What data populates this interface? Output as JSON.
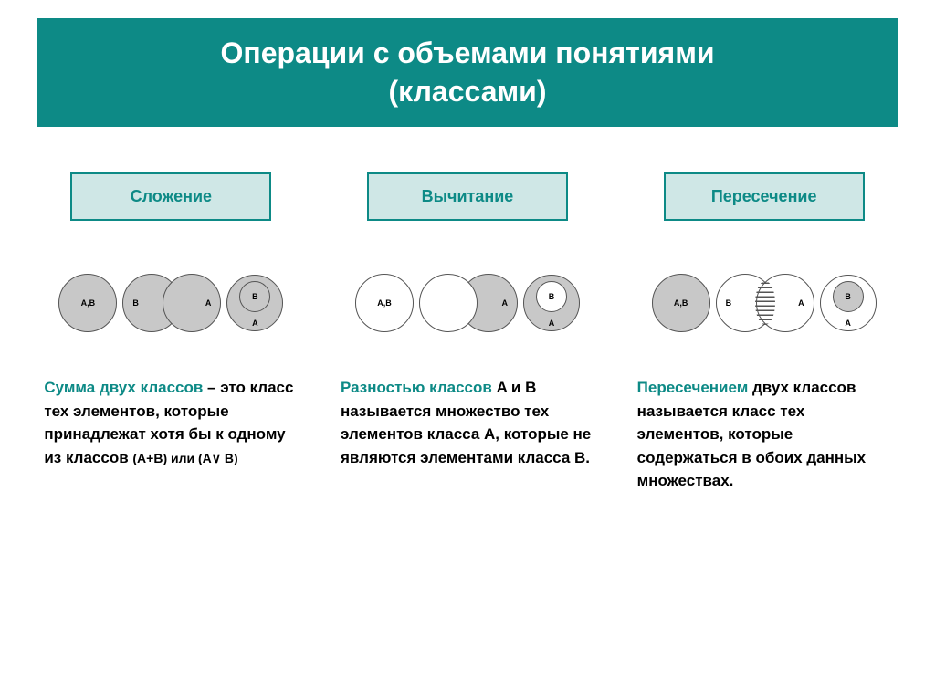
{
  "colors": {
    "teal": "#0d8a86",
    "lightTeal": "#cfe7e6",
    "gray": "#c8c8c8",
    "border": "#555555",
    "white": "#ffffff",
    "black": "#000000"
  },
  "title": {
    "line1": "Операции с объемами понятиями",
    "line2": "(классами)"
  },
  "operations": [
    {
      "name": "Сложение",
      "diagrams": {
        "d1_label": "A,B",
        "d2_left": "B",
        "d2_right": "A",
        "d3_inner": "B",
        "d3_outer": "A"
      },
      "desc": {
        "highlight": "Сумма двух классов",
        "body": " – это класс тех элементов, которые принадлежат хотя бы к одному из классов ",
        "formula": "(A+B) или (A∨ B)"
      }
    },
    {
      "name": "Вычитание",
      "diagrams": {
        "d1_label": "A,B",
        "d2_right": "A",
        "d3_inner": "B",
        "d3_outer": "A"
      },
      "desc": {
        "highlight": "Разностью классов",
        "body_start": " A и B называется множество тех элементов класса A, которые не являются элементами класса B."
      }
    },
    {
      "name": "Пересечение",
      "diagrams": {
        "d1_label": "A,B",
        "d2_left": "B",
        "d2_right": "A",
        "d3_inner": "B",
        "d3_outer": "A"
      },
      "desc": {
        "highlight": "Пересечением",
        "body": " двух классов называется класс тех элементов, которые содержаться в обоих данных множествах."
      }
    }
  ]
}
